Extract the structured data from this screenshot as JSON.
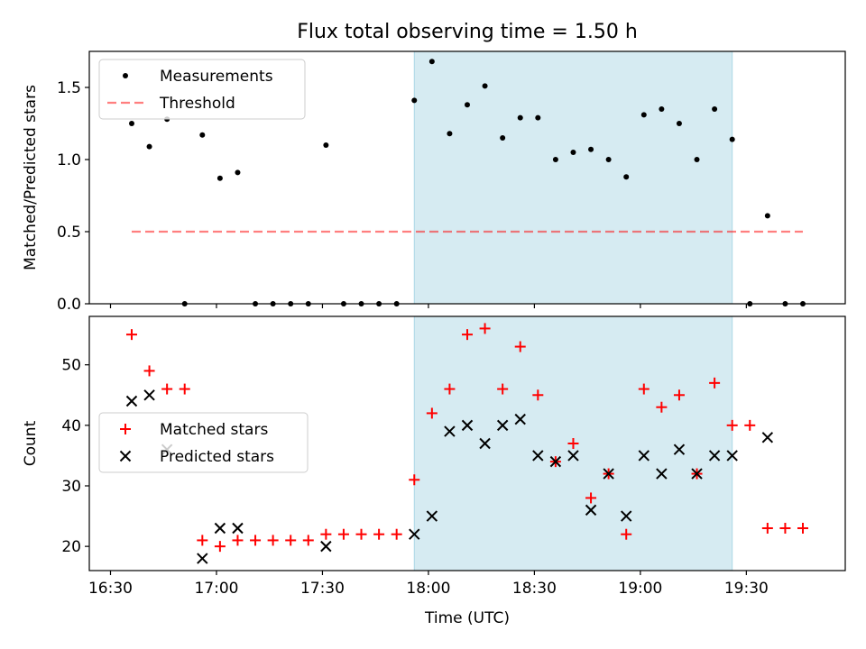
{
  "title": "Flux total observing time = 1.50 h",
  "colors": {
    "shade": "#add8e6",
    "measurement": "#000000",
    "threshold": "#ff0000",
    "matched": "#ff0000",
    "predicted": "#000000"
  },
  "chart_data": [
    {
      "type": "scatter",
      "panel": "top",
      "ylabel": "Matched/Predicted stars",
      "xlabel": "",
      "xlim": [
        "16:24",
        "19:58"
      ],
      "ylim": [
        0,
        1.75
      ],
      "yticks": [
        0.0,
        0.5,
        1.0,
        1.5
      ],
      "ytick_labels": [
        "0.0",
        "0.5",
        "1.0",
        "1.5"
      ],
      "legend_position": "upper-left",
      "shaded_interval": [
        "17:56",
        "19:26"
      ],
      "threshold": {
        "name": "Threshold",
        "value": 0.5,
        "x_range": [
          "16:36",
          "19:46"
        ],
        "style": "dashed"
      },
      "series": [
        {
          "name": "Measurements",
          "marker": "dot",
          "x": [
            "16:36",
            "16:41",
            "16:46",
            "16:51",
            "16:56",
            "17:01",
            "17:06",
            "17:11",
            "17:16",
            "17:21",
            "17:26",
            "17:31",
            "17:36",
            "17:41",
            "17:46",
            "17:51",
            "17:56",
            "18:01",
            "18:06",
            "18:11",
            "18:16",
            "18:21",
            "18:26",
            "18:31",
            "18:36",
            "18:41",
            "18:46",
            "18:51",
            "18:56",
            "19:01",
            "19:06",
            "19:11",
            "19:16",
            "19:21",
            "19:26",
            "19:31",
            "19:36",
            "19:41",
            "19:46"
          ],
          "y": [
            1.25,
            1.09,
            1.28,
            0.0,
            1.17,
            0.87,
            0.91,
            0.0,
            0.0,
            0.0,
            0.0,
            1.1,
            0.0,
            0.0,
            0.0,
            0.0,
            1.41,
            1.68,
            1.18,
            1.38,
            1.51,
            1.15,
            1.29,
            1.29,
            1.0,
            1.05,
            1.07,
            1.0,
            0.88,
            1.31,
            1.35,
            1.25,
            1.0,
            1.35,
            1.14,
            0.0,
            0.61,
            0.0,
            0.0
          ]
        }
      ]
    },
    {
      "type": "scatter",
      "panel": "bottom",
      "ylabel": "Count",
      "xlabel": "Time (UTC)",
      "xlim": [
        "16:24",
        "19:58"
      ],
      "ylim": [
        16,
        58
      ],
      "yticks": [
        20,
        30,
        40,
        50
      ],
      "ytick_labels": [
        "20",
        "30",
        "40",
        "50"
      ],
      "xticks": [
        "16:30",
        "17:00",
        "17:30",
        "18:00",
        "18:30",
        "19:00",
        "19:30"
      ],
      "xtick_labels": [
        "16:30",
        "17:00",
        "17:30",
        "18:00",
        "18:30",
        "19:00",
        "19:30"
      ],
      "legend_position": "center-left",
      "shaded_interval": [
        "17:56",
        "19:26"
      ],
      "series": [
        {
          "name": "Matched stars",
          "marker": "plus",
          "x": [
            "16:36",
            "16:41",
            "16:46",
            "16:51",
            "16:56",
            "17:01",
            "17:06",
            "17:11",
            "17:16",
            "17:21",
            "17:26",
            "17:31",
            "17:36",
            "17:41",
            "17:46",
            "17:51",
            "17:56",
            "18:01",
            "18:06",
            "18:11",
            "18:16",
            "18:21",
            "18:26",
            "18:31",
            "18:36",
            "18:41",
            "18:46",
            "18:51",
            "18:56",
            "19:01",
            "19:06",
            "19:11",
            "19:16",
            "19:21",
            "19:26",
            "19:31",
            "19:36",
            "19:41",
            "19:46"
          ],
          "y": [
            55,
            49,
            46,
            46,
            21,
            20,
            21,
            21,
            21,
            21,
            21,
            22,
            22,
            22,
            22,
            22,
            31,
            42,
            46,
            55,
            56,
            46,
            53,
            45,
            34,
            37,
            28,
            32,
            22,
            46,
            43,
            45,
            32,
            47,
            40,
            40,
            23,
            23,
            23
          ]
        },
        {
          "name": "Predicted stars",
          "marker": "x",
          "x": [
            "16:36",
            "16:41",
            "16:46",
            "16:56",
            "17:01",
            "17:06",
            "17:31",
            "17:56",
            "18:01",
            "18:06",
            "18:11",
            "18:16",
            "18:21",
            "18:26",
            "18:31",
            "18:36",
            "18:41",
            "18:46",
            "18:51",
            "18:56",
            "19:01",
            "19:06",
            "19:11",
            "19:16",
            "19:21",
            "19:26",
            "19:36"
          ],
          "y": [
            44,
            45,
            36,
            18,
            23,
            23,
            20,
            22,
            25,
            39,
            40,
            37,
            40,
            41,
            35,
            34,
            35,
            26,
            32,
            25,
            35,
            32,
            36,
            32,
            35,
            35,
            38
          ]
        }
      ]
    }
  ]
}
